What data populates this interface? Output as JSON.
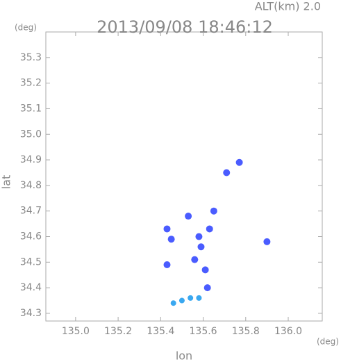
{
  "chart_data": {
    "type": "scatter",
    "title": "2013/09/08 18:46:12",
    "subtitle": "ALT(km) 2.0",
    "x_label": "lon",
    "y_label": "lat",
    "x_unit": "(deg)",
    "y_unit": "(deg)",
    "xlim": [
      134.86,
      136.16
    ],
    "ylim": [
      34.27,
      35.4
    ],
    "xticks": [
      {
        "value": 135.0,
        "label": "135.0"
      },
      135.2,
      135.4,
      135.6,
      135.8,
      {
        "value": 136.0,
        "label": "136.0"
      }
    ],
    "yticks": [
      34.3,
      34.4,
      34.5,
      34.6,
      34.7,
      34.8,
      34.9,
      {
        "value": 35.0,
        "label": "35.0"
      },
      35.1,
      35.2,
      35.3
    ],
    "series": [
      {
        "color": "#4a5cff",
        "x": [
          135.77,
          135.71,
          135.9,
          135.61,
          135.62,
          135.59,
          135.56,
          135.43,
          135.43,
          135.45,
          135.65,
          135.63,
          135.53,
          135.58
        ],
        "values": [
          34.89,
          34.85,
          34.58,
          34.47,
          34.4,
          34.56,
          34.51,
          34.49,
          34.63,
          34.59,
          34.7,
          34.63,
          34.68,
          34.6
        ]
      },
      {
        "color": "#3aa8f0",
        "x": [
          135.46,
          135.5,
          135.54,
          135.58
        ],
        "values": [
          34.34,
          34.35,
          34.36,
          34.36
        ]
      }
    ]
  }
}
